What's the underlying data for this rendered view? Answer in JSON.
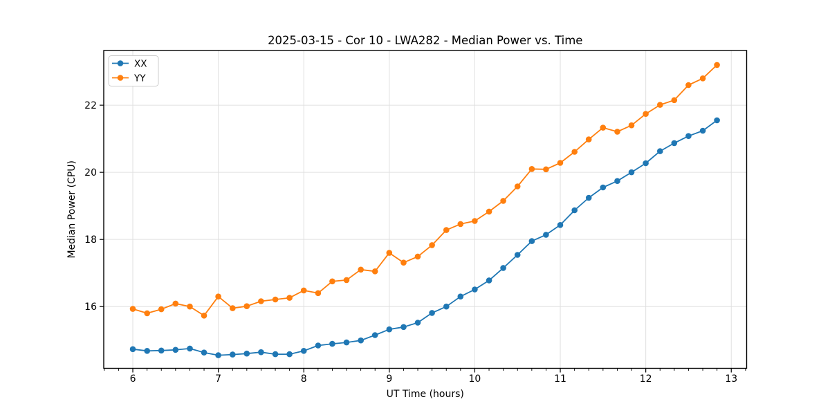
{
  "chart_data": {
    "type": "line",
    "title": "2025-03-15 - Cor 10 - LWA282 - Median Power vs. Time",
    "xlabel": "UT Time (hours)",
    "ylabel": "Median Power (CPU)",
    "xlim": [
      5.66,
      13.18
    ],
    "ylim": [
      14.16,
      23.63
    ],
    "xticks": [
      6,
      7,
      8,
      9,
      10,
      11,
      12,
      13
    ],
    "yticks": [
      16,
      18,
      20,
      22
    ],
    "x_minor_tick_interval": 0.1667,
    "grid": true,
    "legend_position": "upper-left",
    "x": [
      6.0,
      6.167,
      6.333,
      6.5,
      6.667,
      6.833,
      7.0,
      7.167,
      7.333,
      7.5,
      7.667,
      7.833,
      8.0,
      8.167,
      8.333,
      8.5,
      8.667,
      8.833,
      9.0,
      9.167,
      9.333,
      9.5,
      9.667,
      9.833,
      10.0,
      10.167,
      10.333,
      10.5,
      10.667,
      10.833,
      11.0,
      11.167,
      11.333,
      11.5,
      11.667,
      11.833,
      12.0,
      12.167,
      12.333,
      12.5,
      12.667,
      12.833
    ],
    "series": [
      {
        "name": "XX",
        "color": "#1f77b4",
        "values": [
          14.73,
          14.68,
          14.69,
          14.71,
          14.75,
          14.63,
          14.55,
          14.57,
          14.6,
          14.64,
          14.58,
          14.58,
          14.68,
          14.84,
          14.89,
          14.93,
          14.99,
          15.15,
          15.32,
          15.39,
          15.52,
          15.81,
          16.0,
          16.3,
          16.51,
          16.78,
          17.15,
          17.54,
          17.95,
          18.14,
          18.43,
          18.87,
          19.24,
          19.55,
          19.74,
          20.0,
          20.27,
          20.63,
          20.87,
          21.08,
          21.24,
          21.55
        ]
      },
      {
        "name": "YY",
        "color": "#ff7f0e",
        "values": [
          15.93,
          15.8,
          15.92,
          16.09,
          16.0,
          15.73,
          16.3,
          15.95,
          16.01,
          16.16,
          16.21,
          16.26,
          16.48,
          16.4,
          16.75,
          16.79,
          17.1,
          17.05,
          17.6,
          17.31,
          17.49,
          17.83,
          18.28,
          18.46,
          18.55,
          18.83,
          19.15,
          19.58,
          20.1,
          20.09,
          20.28,
          20.61,
          20.98,
          21.33,
          21.21,
          21.4,
          21.74,
          22.01,
          22.15,
          22.6,
          22.8,
          23.2
        ]
      }
    ],
    "colors": {
      "grid": "#e0e0e0",
      "spine": "#000000",
      "text": "#000000",
      "legend_border": "#cccccc",
      "background": "#ffffff"
    }
  }
}
